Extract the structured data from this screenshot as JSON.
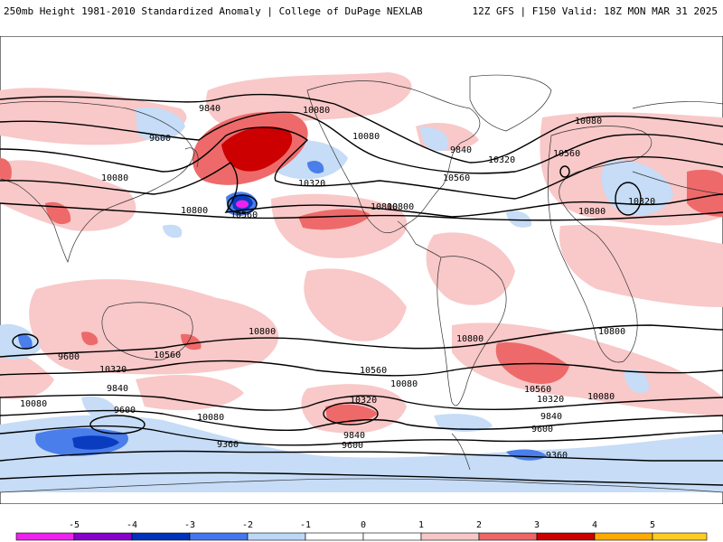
{
  "header": {
    "left": "250mb Height 1981-2010 Standardized Anomaly | College of DuPage NEXLAB",
    "right": "12Z GFS | F150 Valid: 18Z MON MAR 31 2025"
  },
  "colorbar": {
    "ticks": [
      "-5",
      "-4",
      "-3",
      "-2",
      "-1",
      "0",
      "1",
      "2",
      "3",
      "4",
      "5"
    ],
    "colors": [
      "#ee22ee",
      "#8800cc",
      "#0033bb",
      "#4477ee",
      "#bbd8f7",
      "#ffffff",
      "#ffffff",
      "#f7c6c6",
      "#ee6666",
      "#cc0000",
      "#ffaa00",
      "#ffcc22"
    ]
  },
  "colors": {
    "light_red": "#f9c8c8",
    "mid_red": "#ee6a6a",
    "dark_red": "#cc0000",
    "light_blue": "#c6dcf7",
    "mid_blue": "#4a7eea",
    "dark_blue": "#0a3cc0",
    "magenta": "#ee22ee",
    "contour": "#000000",
    "land": "#333333"
  },
  "contour_labels": [
    "9840",
    "10080",
    "9600",
    "10080",
    "9840",
    "10320",
    "10560",
    "10800",
    "10080",
    "10320",
    "10560",
    "10800",
    "10320",
    "10560",
    "10080",
    "10800",
    "10800",
    "10800",
    "10800",
    "10560",
    "10320",
    "10080",
    "9840",
    "9600",
    "10320",
    "10560",
    "10080",
    "10080",
    "9840",
    "9600",
    "9360",
    "9600",
    "9360",
    "10560",
    "10320",
    "10080",
    "9840",
    "9600",
    "10800"
  ]
}
